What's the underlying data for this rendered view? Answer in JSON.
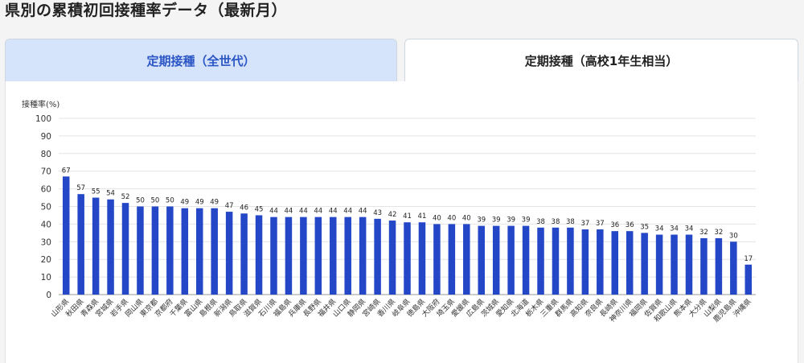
{
  "page": {
    "title": "県別の累積初回接種率データ（最新月）"
  },
  "tabs": [
    {
      "label": "定期接種（全世代）",
      "active": true
    },
    {
      "label": "定期接種（高校1年生相当）",
      "active": false
    }
  ],
  "colors": {
    "bar": "#2447c7",
    "active_tab_bg": "#d6e4fb",
    "active_tab_text": "#2a55c4"
  },
  "chart_data": {
    "type": "bar",
    "ylabel": "接種率(%)",
    "ylim": [
      0,
      100
    ],
    "yticks": [
      0,
      10,
      20,
      30,
      40,
      50,
      60,
      70,
      80,
      90,
      100
    ],
    "grid": true,
    "categories": [
      "山形県",
      "秋田県",
      "青森県",
      "宮城県",
      "岩手県",
      "岡山県",
      "東京都",
      "京都府",
      "千葉県",
      "富山県",
      "島根県",
      "新潟県",
      "鳥取県",
      "滋賀県",
      "石川県",
      "福島県",
      "兵庫県",
      "長野県",
      "福井県",
      "山口県",
      "静岡県",
      "宮崎県",
      "香川県",
      "岐阜県",
      "徳島県",
      "大阪府",
      "埼玉県",
      "愛媛県",
      "広島県",
      "茨城県",
      "愛知県",
      "北海道",
      "栃木県",
      "三重県",
      "群馬県",
      "高知県",
      "奈良県",
      "長崎県",
      "神奈川県",
      "福岡県",
      "佐賀県",
      "和歌山県",
      "熊本県",
      "大分県",
      "山梨県",
      "鹿児島県",
      "沖縄県"
    ],
    "values": [
      67,
      57,
      55,
      54,
      52,
      50,
      50,
      50,
      49,
      49,
      49,
      47,
      46,
      45,
      44,
      44,
      44,
      44,
      44,
      44,
      44,
      43,
      42,
      41,
      41,
      40,
      40,
      40,
      39,
      39,
      39,
      39,
      38,
      38,
      38,
      37,
      37,
      36,
      36,
      35,
      34,
      34,
      34,
      32,
      32,
      30,
      17
    ]
  }
}
